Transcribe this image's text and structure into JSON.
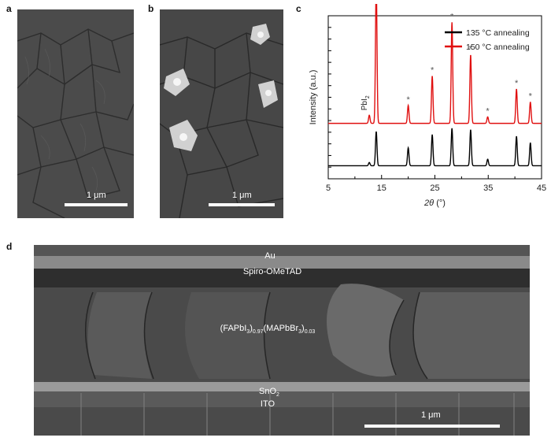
{
  "panels": {
    "a": {
      "letter": "a",
      "scale_label": "1 μm"
    },
    "b": {
      "letter": "b",
      "scale_label": "1 μm"
    },
    "c": {
      "letter": "c"
    },
    "d": {
      "letter": "d",
      "scale_label": "1 μm",
      "layers": {
        "au": "Au",
        "spiro": "Spiro-OMeTAD",
        "perovskite": {
          "p1": "(FAPbI",
          "s1": "3",
          "s2": ")",
          "s3": "0.97",
          "p2": "(MAPbBr",
          "s4": "3",
          "s5": ")",
          "s6": "0.03"
        },
        "sno2": {
          "main": "SnO",
          "sub": "2"
        },
        "ito": "ITO"
      }
    }
  },
  "chart_data": {
    "type": "line",
    "ylabel": "Intensity (a.u.)",
    "xlabel_italic": "2θ",
    "xlabel_unit": "(°)",
    "xlim": [
      5,
      45
    ],
    "xticks": [
      5,
      15,
      25,
      35,
      45
    ],
    "y_ticks_unlabeled": true,
    "annotation": {
      "text": "PbI",
      "sub": "2",
      "x": 12.7
    },
    "peak_marker": "*",
    "starred_peaks": [
      14.0,
      20.0,
      24.5,
      28.2,
      31.7,
      34.9,
      40.3,
      42.9
    ],
    "legend": {
      "position": "top-right"
    },
    "series": [
      {
        "name": "135 °C annealing",
        "color": "#000000",
        "baseline": 0.08,
        "peaks": [
          {
            "x": 14.0,
            "h": 0.21
          },
          {
            "x": 20.0,
            "h": 0.11
          },
          {
            "x": 24.5,
            "h": 0.19
          },
          {
            "x": 28.2,
            "h": 0.23
          },
          {
            "x": 31.7,
            "h": 0.22
          },
          {
            "x": 34.9,
            "h": 0.04
          },
          {
            "x": 40.3,
            "h": 0.18
          },
          {
            "x": 42.9,
            "h": 0.14
          },
          {
            "x": 12.7,
            "h": 0.02
          }
        ]
      },
      {
        "name": "150 °C annealing",
        "color": "#e01010",
        "baseline": 0.34,
        "peaks": [
          {
            "x": 12.7,
            "h": 0.05
          },
          {
            "x": 14.0,
            "h": 0.86
          },
          {
            "x": 20.0,
            "h": 0.11
          },
          {
            "x": 24.5,
            "h": 0.29
          },
          {
            "x": 28.2,
            "h": 0.62
          },
          {
            "x": 31.7,
            "h": 0.42
          },
          {
            "x": 34.9,
            "h": 0.04
          },
          {
            "x": 40.3,
            "h": 0.21
          },
          {
            "x": 42.9,
            "h": 0.13
          }
        ]
      }
    ]
  }
}
